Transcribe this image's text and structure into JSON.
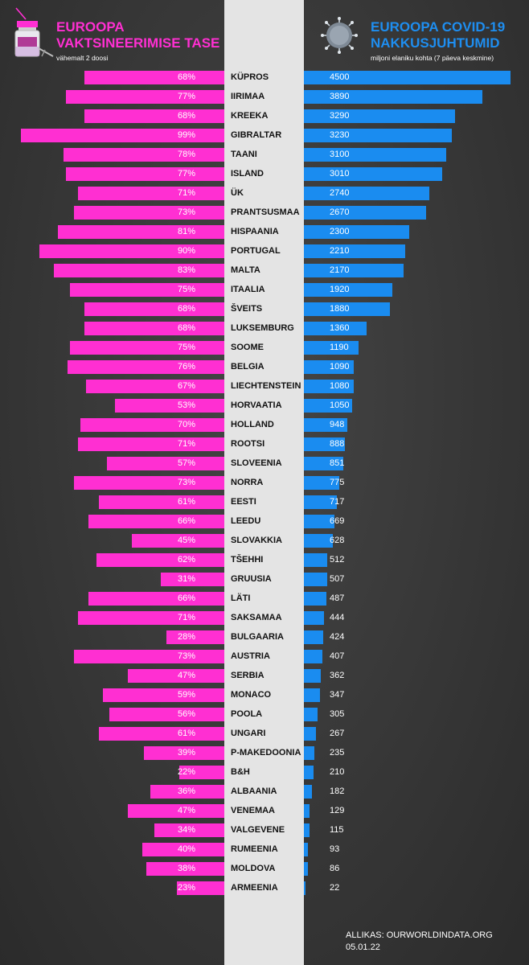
{
  "left_header": {
    "line1": "EUROOPA",
    "line2": "VAKTSINEERIMISE TASE",
    "subtitle": "vähemalt 2 doosi"
  },
  "right_header": {
    "line1": "EUROOPA COVID-19",
    "line2": "NAKKUSJUHTUMID",
    "subtitle": "miljoni elaniku kohta (7 päeva keskmine)"
  },
  "source": {
    "line1": "ALLIKAS: OURWORLDINDATA.ORG",
    "line2": "05.01.22"
  },
  "colors": {
    "vaccination": "#ff2fd2",
    "cases": "#1a8cf0",
    "center": "#e4e4e4"
  },
  "icons": {
    "left": "vaccine-vial-icon",
    "right": "coronavirus-icon"
  },
  "chart_data": {
    "type": "bar",
    "layout": "back-to-back horizontal bars",
    "categories": [
      "KÜPROS",
      "IIRIMAA",
      "KREEKA",
      "GIBRALTAR",
      "TAANI",
      "ISLAND",
      "ÜK",
      "PRANTSUSMAA",
      "HISPAANIA",
      "PORTUGAL",
      "MALTA",
      "ITAALIA",
      "ŠVEITS",
      "LUKSEMBURG",
      "SOOME",
      "BELGIA",
      "LIECHTENSTEIN",
      "HORVAATIA",
      "HOLLAND",
      "ROOTSI",
      "SLOVEENIA",
      "NORRA",
      "EESTI",
      "LEEDU",
      "SLOVAKKIA",
      "TŠEHHI",
      "GRUUSIA",
      "LÄTI",
      "SAKSAMAA",
      "BULGAARIA",
      "AUSTRIA",
      "SERBIA",
      "MONACO",
      "POOLA",
      "UNGARI",
      "P-MAKEDOONIA",
      "B&H",
      "ALBAANIA",
      "VENEMAA",
      "VALGEVENE",
      "RUMEENIA",
      "MOLDOVA",
      "ARMEENIA"
    ],
    "series": [
      {
        "name": "VAKTSINEERIMISE TASE",
        "values": [
          68,
          77,
          68,
          99,
          78,
          77,
          71,
          73,
          81,
          90,
          83,
          75,
          68,
          68,
          75,
          76,
          67,
          53,
          70,
          71,
          57,
          73,
          61,
          66,
          45,
          62,
          31,
          66,
          71,
          28,
          73,
          47,
          59,
          56,
          61,
          39,
          22,
          36,
          47,
          34,
          40,
          38,
          23
        ],
        "labels": [
          "68%",
          "77%",
          "68%",
          "99%",
          "78%",
          "77%",
          "71%",
          "73%",
          "81%",
          "90%",
          "83%",
          "75%",
          "68%",
          "68%",
          "75%",
          "76%",
          "67%",
          "53%",
          "70%",
          "71%",
          "57%",
          "73%",
          "61%",
          "66%",
          "45%",
          "62%",
          "31%",
          "66%",
          "71%",
          "28%",
          "73%",
          "47%",
          "59%",
          "56%",
          "61%",
          "39%",
          "22%",
          "36%",
          "47%",
          "34%",
          "40%",
          "38%",
          "23%"
        ]
      },
      {
        "name": "NAKKUSJUHTUMID",
        "values": [
          4500,
          3890,
          3290,
          3230,
          3100,
          3010,
          2740,
          2670,
          2300,
          2210,
          2170,
          1920,
          1880,
          1360,
          1190,
          1090,
          1080,
          1050,
          948,
          888,
          851,
          775,
          717,
          669,
          628,
          512,
          507,
          487,
          444,
          424,
          407,
          362,
          347,
          305,
          267,
          235,
          210,
          182,
          129,
          115,
          93,
          86,
          22
        ]
      }
    ]
  }
}
